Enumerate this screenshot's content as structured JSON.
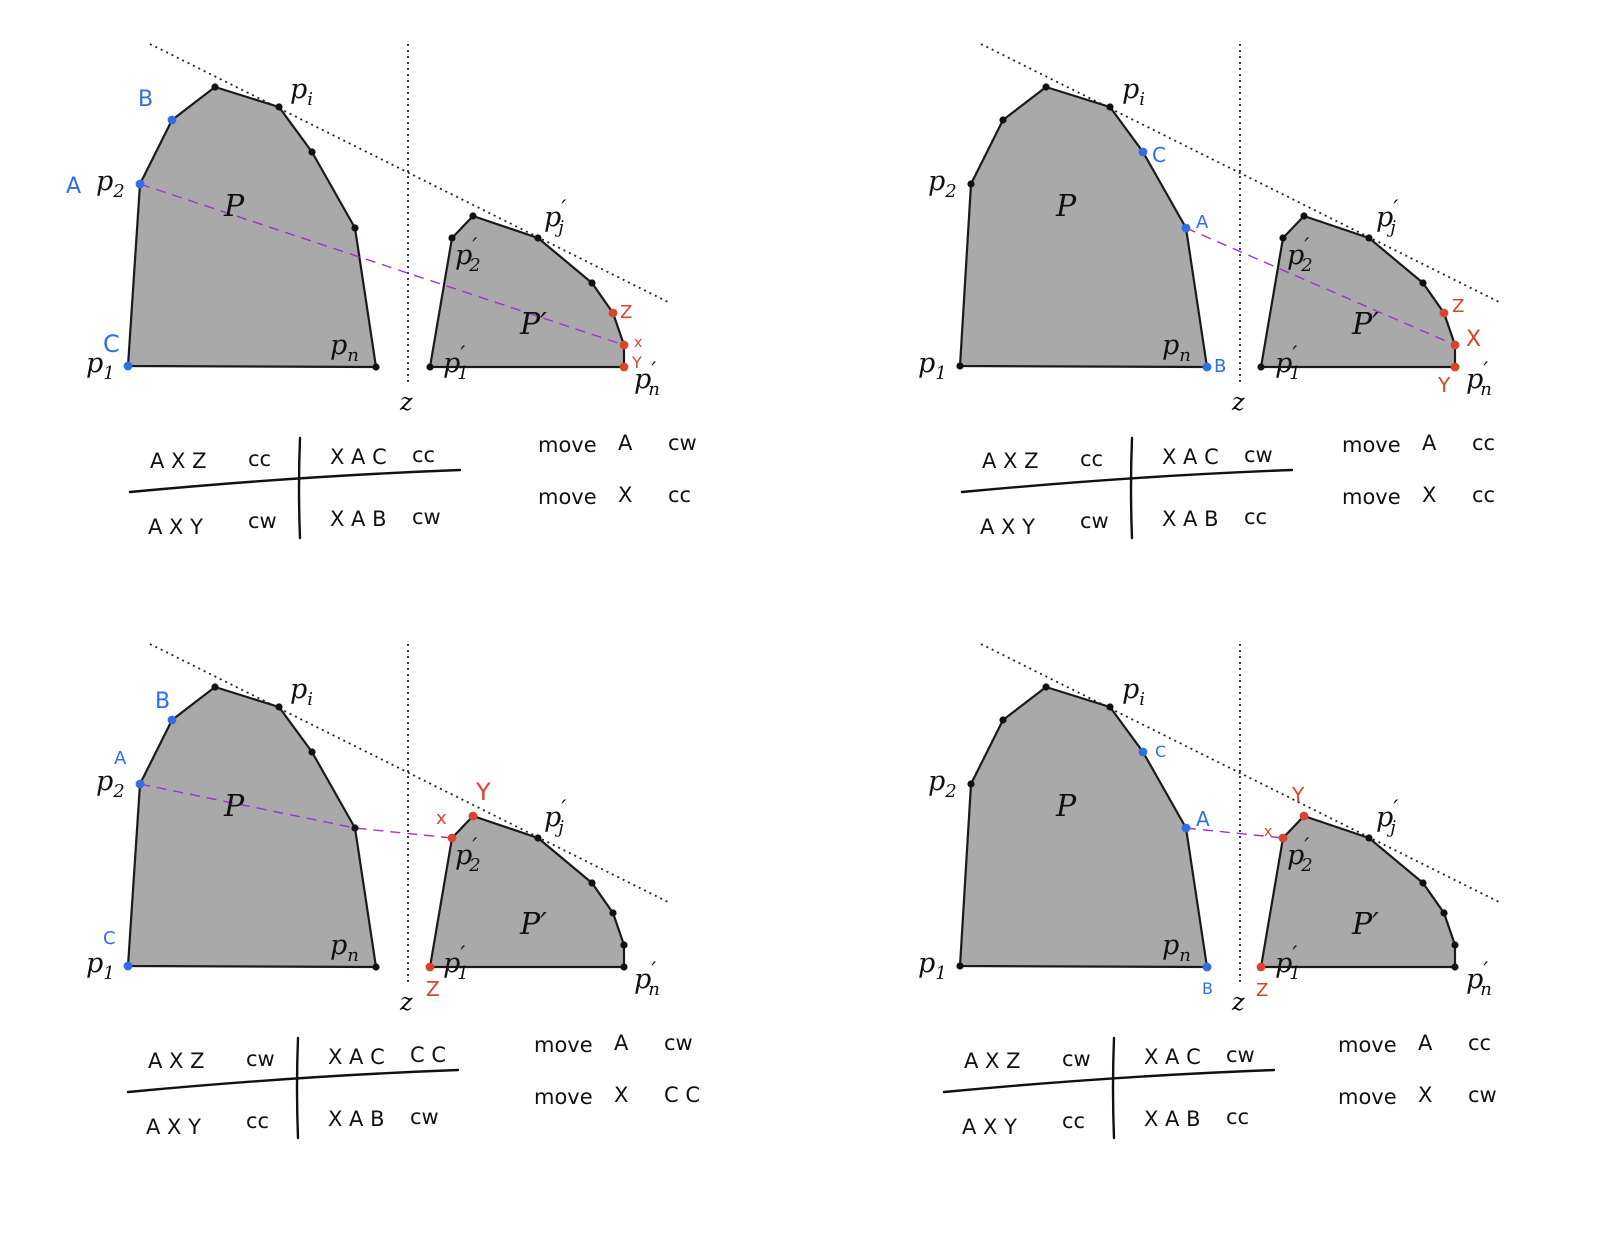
{
  "colors": {
    "polygon_fill": "#a9a9a9",
    "outline": "#1a1a1a",
    "blue": "#2e6fe6",
    "red": "#d9432f",
    "bridge": "#9a33cc"
  },
  "panels": [
    {
      "id": "top-left",
      "markers": [
        {
          "text": "A",
          "color": "blue"
        },
        {
          "text": "B",
          "color": "blue"
        },
        {
          "text": "C",
          "color": "blue"
        },
        {
          "text": "Z",
          "color": "red"
        },
        {
          "text": "x",
          "color": "red"
        },
        {
          "text": "Y",
          "color": "red"
        }
      ],
      "table": {
        "r1c1": "A X Z",
        "r1c2": "cc",
        "r1c3": "X A C",
        "r1c4": "cc",
        "r2c1": "A X Y",
        "r2c2": "cw",
        "r2c3": "X A B",
        "r2c4": "cw"
      },
      "moves": [
        {
          "word": "move",
          "target": "A",
          "dir": "cw"
        },
        {
          "word": "move",
          "target": "X",
          "dir": "cc"
        }
      ]
    },
    {
      "id": "top-right",
      "markers": [
        {
          "text": "C",
          "color": "blue"
        },
        {
          "text": "A",
          "color": "blue"
        },
        {
          "text": "B",
          "color": "blue"
        },
        {
          "text": "Z",
          "color": "red"
        },
        {
          "text": "X",
          "color": "red"
        },
        {
          "text": "Y",
          "color": "red"
        }
      ],
      "table": {
        "r1c1": "A X Z",
        "r1c2": "cc",
        "r1c3": "X A C",
        "r1c4": "cw",
        "r2c1": "A X Y",
        "r2c2": "cw",
        "r2c3": "X A B",
        "r2c4": "cc"
      },
      "moves": [
        {
          "word": "move",
          "target": "A",
          "dir": "cc"
        },
        {
          "word": "move",
          "target": "X",
          "dir": "cc"
        }
      ]
    },
    {
      "id": "bottom-left",
      "markers": [
        {
          "text": "B",
          "color": "blue"
        },
        {
          "text": "A",
          "color": "blue"
        },
        {
          "text": "C",
          "color": "blue"
        },
        {
          "text": "x",
          "color": "red"
        },
        {
          "text": "Y",
          "color": "red"
        },
        {
          "text": "Z",
          "color": "red"
        }
      ],
      "table": {
        "r1c1": "A X Z",
        "r1c2": "cw",
        "r1c3": "X A C",
        "r1c4": "C C",
        "r2c1": "A X Y",
        "r2c2": "cc",
        "r2c3": "X A B",
        "r2c4": "cw"
      },
      "moves": [
        {
          "word": "move",
          "target": "A",
          "dir": "cw"
        },
        {
          "word": "move",
          "target": "X",
          "dir": "C C"
        }
      ]
    },
    {
      "id": "bottom-right",
      "markers": [
        {
          "text": "C",
          "color": "blue"
        },
        {
          "text": "A",
          "color": "blue"
        },
        {
          "text": "B",
          "color": "blue"
        },
        {
          "text": "x",
          "color": "red"
        },
        {
          "text": "Y",
          "color": "red"
        },
        {
          "text": "Z",
          "color": "red"
        }
      ],
      "table": {
        "r1c1": "A X Z",
        "r1c2": "cw",
        "r1c3": "X A C",
        "r1c4": "cw",
        "r2c1": "A X Y",
        "r2c2": "cc",
        "r2c3": "X A B",
        "r2c4": "cc"
      },
      "moves": [
        {
          "word": "move",
          "target": "A",
          "dir": "cc"
        },
        {
          "word": "move",
          "target": "X",
          "dir": "cw"
        }
      ]
    }
  ],
  "labels": {
    "P": "P",
    "Pp": "P′",
    "z": "z",
    "p": "p",
    "prime": "′",
    "sub_1": "1",
    "sub_2": "2",
    "sub_i": "i",
    "sub_j": "j",
    "sub_n": "n"
  }
}
